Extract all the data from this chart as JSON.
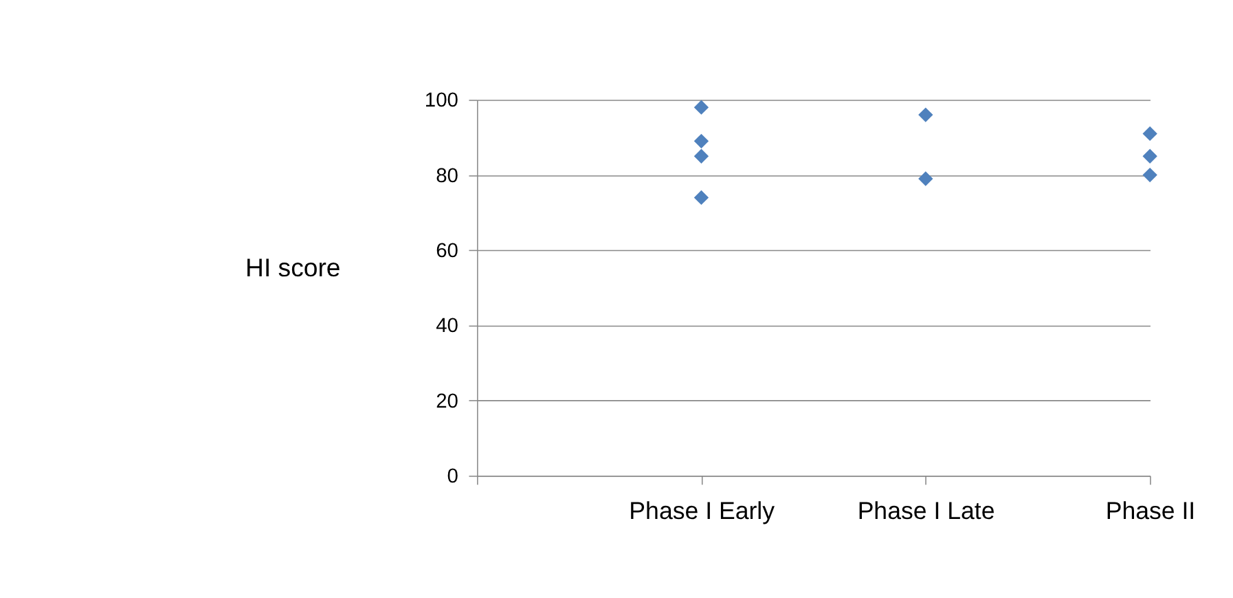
{
  "chart_data": {
    "type": "scatter",
    "ylabel": "HI score",
    "categories": [
      null,
      "Phase I Early",
      "Phase I Late",
      "Phase II"
    ],
    "series": [
      {
        "color": "#4f81bd",
        "x": [
          "Phase I Early",
          "Phase I Early",
          "Phase I Early",
          "Phase I Early",
          "Phase I Late",
          "Phase I Late",
          "Phase II",
          "Phase II",
          "Phase II"
        ],
        "values": [
          98,
          89,
          85,
          74,
          96,
          79,
          91,
          85,
          80
        ]
      }
    ],
    "ylim": [
      0,
      100
    ],
    "yticks": [
      0,
      20,
      40,
      60,
      80,
      100
    ],
    "grid": "y",
    "marker": "diamond",
    "legend": false
  }
}
